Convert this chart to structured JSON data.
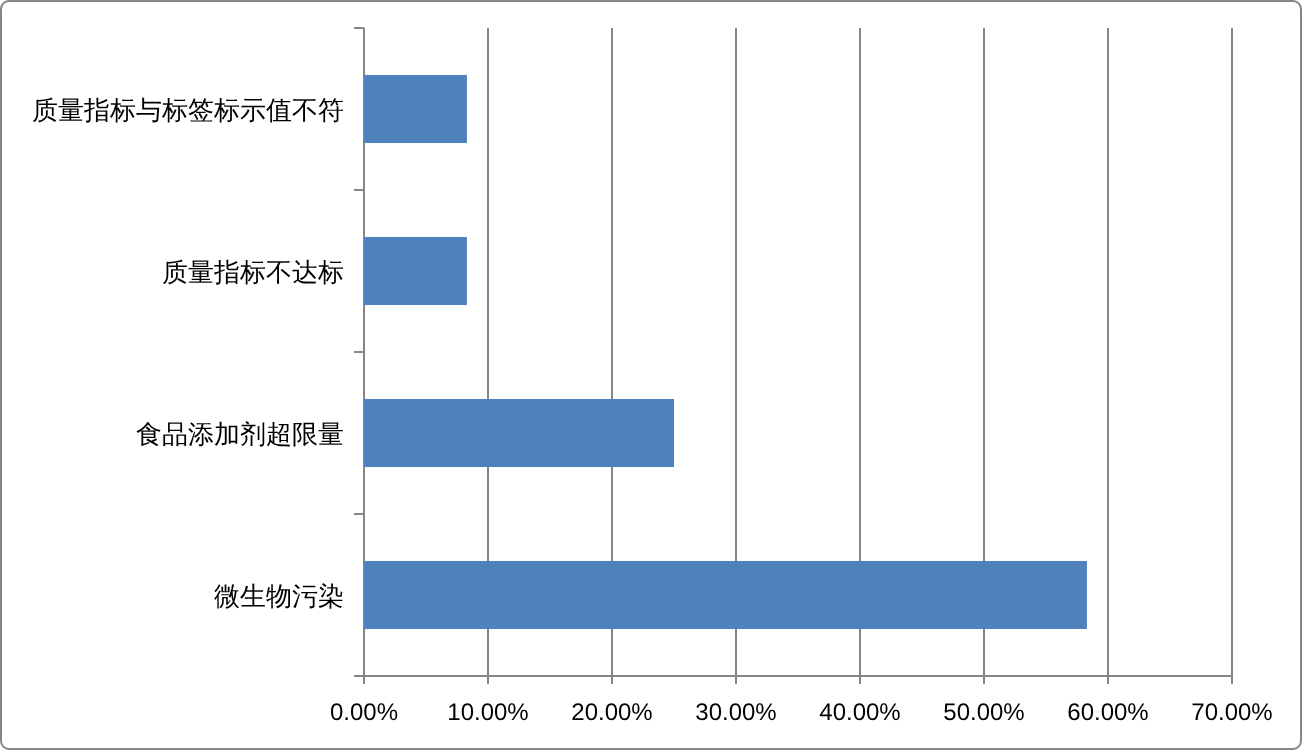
{
  "chart_data": {
    "type": "bar",
    "orientation": "horizontal",
    "categories": [
      "质量指标与标签标示值不符",
      "质量指标不达标",
      "食品添加剂超限量",
      "微生物污染"
    ],
    "values": [
      8.3,
      8.3,
      25,
      58.3
    ],
    "color": "#4f81bd",
    "xlim": [
      0,
      70
    ],
    "xticks": [
      {
        "value": 0,
        "label": "0.00%"
      },
      {
        "value": 10,
        "label": "10.00%"
      },
      {
        "value": 20,
        "label": "20.00%"
      },
      {
        "value": 30,
        "label": "30.00%"
      },
      {
        "value": 40,
        "label": "40.00%"
      },
      {
        "value": 50,
        "label": "50.00%"
      },
      {
        "value": 60,
        "label": "60.00%"
      },
      {
        "value": 70,
        "label": "70.00%"
      }
    ],
    "grid": "x"
  }
}
